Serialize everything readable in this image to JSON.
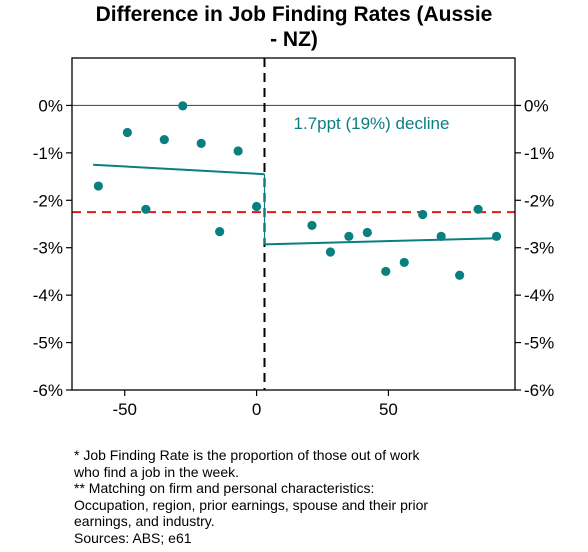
{
  "title_lines": [
    "Difference in Job Finding Rates (Aussie",
    "- NZ)"
  ],
  "colors": {
    "points": "#0a7f80",
    "fit": "#0a7f80",
    "mean_line": "#e0191a",
    "zero_line": "#555555",
    "cutoff": "#000000",
    "annotation": "#0a7f80"
  },
  "chart_data": {
    "type": "scatter",
    "title": "Difference in Job Finding Rates (Aussie - NZ)",
    "xlim": [
      -70,
      98
    ],
    "ylim": [
      -6,
      1
    ],
    "x_ticks": [
      {
        "value": -50,
        "label": "-50"
      },
      {
        "value": 0,
        "label": "0"
      },
      {
        "value": 50,
        "label": "50"
      }
    ],
    "y_ticks": [
      {
        "value": 0,
        "label": "0%"
      },
      {
        "value": -1,
        "label": "-1%"
      },
      {
        "value": -2,
        "label": "-2%"
      },
      {
        "value": -3,
        "label": "-3%"
      },
      {
        "value": -4,
        "label": "-4%"
      },
      {
        "value": -5,
        "label": "-5%"
      },
      {
        "value": -6,
        "label": "-6%"
      }
    ],
    "points": [
      {
        "x": -60,
        "y": -1.7
      },
      {
        "x": -49,
        "y": -0.57
      },
      {
        "x": -42,
        "y": -2.19
      },
      {
        "x": -35,
        "y": -0.72
      },
      {
        "x": -28,
        "y": -0.01
      },
      {
        "x": -21,
        "y": -0.8
      },
      {
        "x": -14,
        "y": -2.66
      },
      {
        "x": -7,
        "y": -0.96
      },
      {
        "x": 0,
        "y": -2.13
      },
      {
        "x": 21,
        "y": -2.53
      },
      {
        "x": 28,
        "y": -3.09
      },
      {
        "x": 35,
        "y": -2.76
      },
      {
        "x": 42,
        "y": -2.68
      },
      {
        "x": 49,
        "y": -3.5
      },
      {
        "x": 56,
        "y": -3.31
      },
      {
        "x": 63,
        "y": -2.3
      },
      {
        "x": 70,
        "y": -2.76
      },
      {
        "x": 77,
        "y": -3.58
      },
      {
        "x": 84,
        "y": -2.19
      },
      {
        "x": 91,
        "y": -2.76
      }
    ],
    "fit_left": [
      [
        -62,
        -1.25
      ],
      [
        3,
        -1.45
      ]
    ],
    "fit_right": [
      [
        3,
        -2.93
      ],
      [
        91,
        -2.8
      ]
    ],
    "cutoff_x": 3,
    "mean_y": -2.25,
    "annotation": "1.7ppt (19%) decline",
    "annotation_at": {
      "x": 14,
      "y": -0.5
    }
  },
  "footnotes": [
    "* Job Finding Rate is the proportion of those out of work",
    "who find a job in the week.",
    "** Matching on firm and personal characteristics:",
    "Occupation, region, prior earnings, spouse and their prior",
    "earnings, and industry.",
    "Sources: ABS; e61"
  ]
}
